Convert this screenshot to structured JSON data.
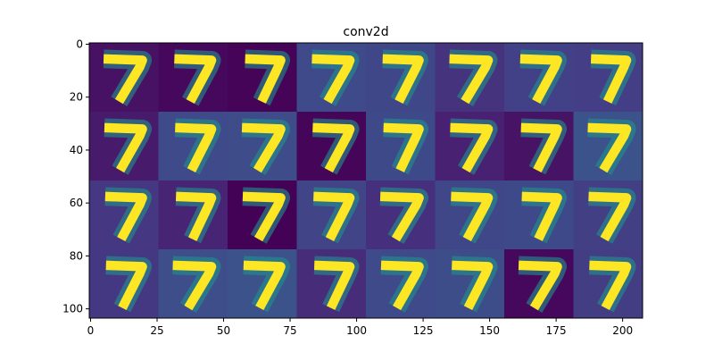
{
  "chart_data": {
    "type": "image",
    "title": "conv2d",
    "xlim": [
      -0.5,
      207.5
    ],
    "ylim": [
      103.5,
      -0.5
    ],
    "xticks": [
      0,
      25,
      50,
      75,
      100,
      125,
      150,
      175,
      200
    ],
    "yticks": [
      0,
      20,
      40,
      60,
      80,
      100
    ],
    "grid": false,
    "tile_colors": [
      [
        "#471264",
        "#46085c",
        "#450457",
        "#3e4a89",
        "#3f4788",
        "#46337e",
        "#424086",
        "#433e85"
      ],
      [
        "#481a6c",
        "#3f4a8a",
        "#3e4c8a",
        "#450559",
        "#3e4989",
        "#482173",
        "#471365",
        "#3b528b"
      ],
      [
        "#453781",
        "#482475",
        "#440256",
        "#414487",
        "#46307e",
        "#3f4788",
        "#3e4989",
        "#423f85"
      ],
      [
        "#453882",
        "#3d4e8a",
        "#3b528b",
        "#472c7a",
        "#3e4a89",
        "#3d4d8a",
        "#46085c",
        "#433d84"
      ]
    ],
    "stroke_color": "#fde725"
  }
}
